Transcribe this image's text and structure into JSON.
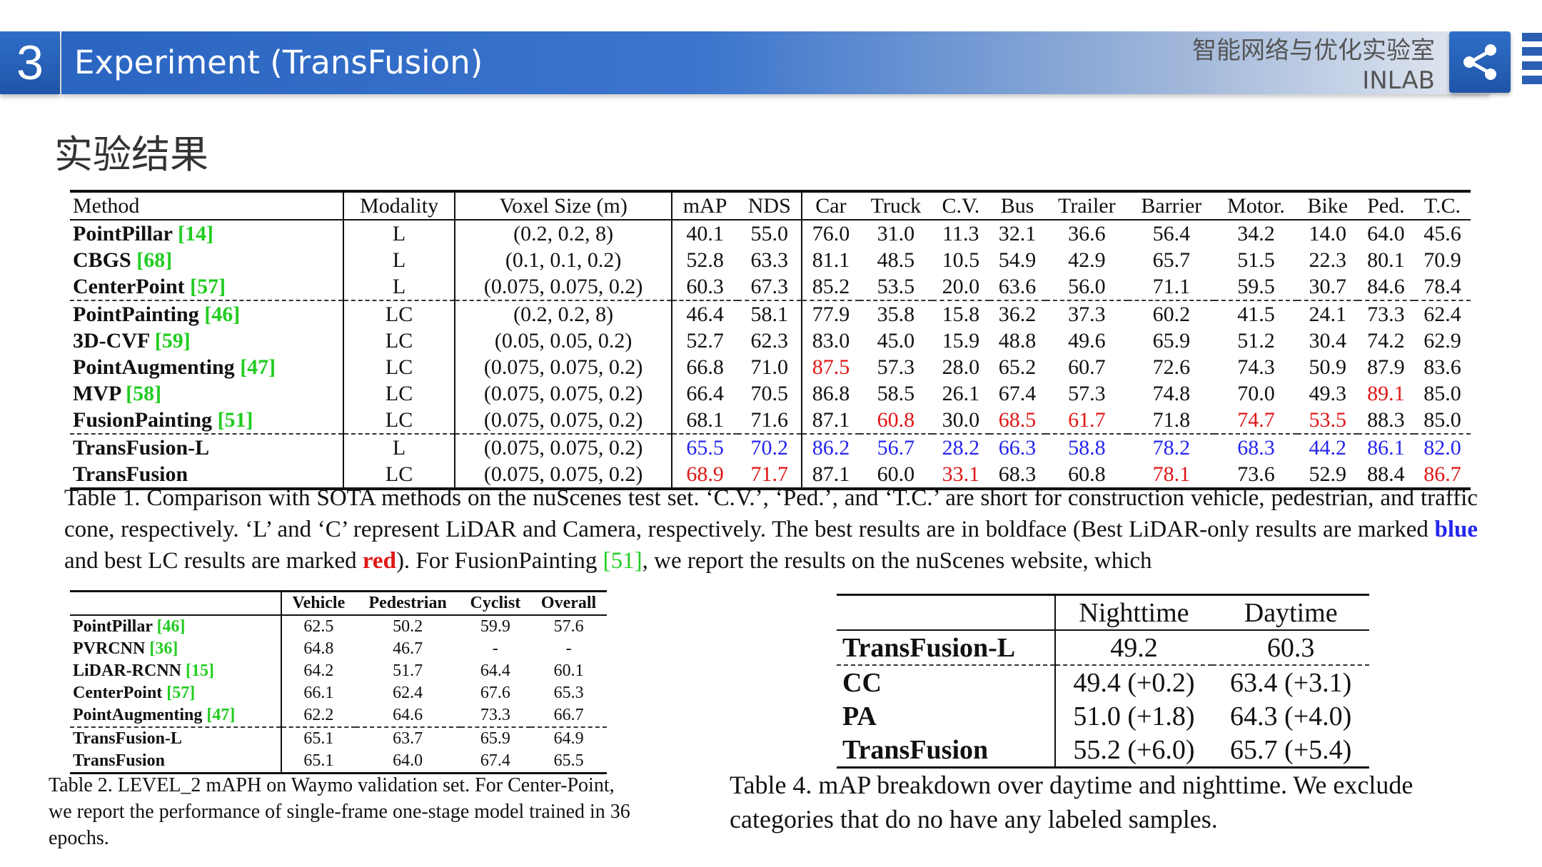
{
  "header": {
    "section_number": "3",
    "title": "Experiment (TransFusion)",
    "lab_name_cn": "智能网络与优化实验室",
    "lab_name_en": "INLAB"
  },
  "subtitle": "实验结果",
  "table1": {
    "headers": [
      "Method",
      "Modality",
      "Voxel Size (m)",
      "mAP",
      "NDS",
      "Car",
      "Truck",
      "C.V.",
      "Bus",
      "Trailer",
      "Barrier",
      "Motor.",
      "Bike",
      "Ped.",
      "T.C."
    ],
    "rows": [
      {
        "method": "PointPillar",
        "ref": "[14]",
        "modality": "L",
        "voxel": "(0.2, 0.2, 8)",
        "values": [
          "40.1",
          "55.0",
          "76.0",
          "31.0",
          "11.3",
          "32.1",
          "36.6",
          "56.4",
          "34.2",
          "14.0",
          "64.0",
          "45.6"
        ]
      },
      {
        "method": "CBGS",
        "ref": "[68]",
        "modality": "L",
        "voxel": "(0.1, 0.1, 0.2)",
        "values": [
          "52.8",
          "63.3",
          "81.1",
          "48.5",
          "10.5",
          "54.9",
          "42.9",
          "65.7",
          "51.5",
          "22.3",
          "80.1",
          "70.9"
        ]
      },
      {
        "method": "CenterPoint",
        "ref": "[57]",
        "modality": "L",
        "voxel": "(0.075, 0.075, 0.2)",
        "values": [
          "60.3",
          "67.3",
          "85.2",
          "53.5",
          "20.0",
          "63.6",
          "56.0",
          "71.1",
          "59.5",
          "30.7",
          "84.6",
          "78.4"
        ]
      },
      {
        "method": "PointPainting",
        "ref": "[46]",
        "modality": "LC",
        "voxel": "(0.2, 0.2, 8)",
        "values": [
          "46.4",
          "58.1",
          "77.9",
          "35.8",
          "15.8",
          "36.2",
          "37.3",
          "60.2",
          "41.5",
          "24.1",
          "73.3",
          "62.4"
        ]
      },
      {
        "method": "3D-CVF",
        "ref": "[59]",
        "modality": "LC",
        "voxel": "(0.05, 0.05, 0.2)",
        "values": [
          "52.7",
          "62.3",
          "83.0",
          "45.0",
          "15.9",
          "48.8",
          "49.6",
          "65.9",
          "51.2",
          "30.4",
          "74.2",
          "62.9"
        ]
      },
      {
        "method": "PointAugmenting",
        "ref": "[47]",
        "modality": "LC",
        "voxel": "(0.075, 0.075, 0.2)",
        "values": [
          "66.8",
          "71.0",
          "87.5",
          "57.3",
          "28.0",
          "65.2",
          "60.7",
          "72.6",
          "74.3",
          "50.9",
          "87.9",
          "83.6"
        ]
      },
      {
        "method": "MVP",
        "ref": "[58]",
        "modality": "LC",
        "voxel": "(0.075, 0.075, 0.2)",
        "values": [
          "66.4",
          "70.5",
          "86.8",
          "58.5",
          "26.1",
          "67.4",
          "57.3",
          "74.8",
          "70.0",
          "49.3",
          "89.1",
          "85.0"
        ]
      },
      {
        "method": "FusionPainting",
        "ref": "[51]",
        "modality": "LC",
        "voxel": "(0.075, 0.075, 0.2)",
        "values": [
          "68.1",
          "71.6",
          "87.1",
          "60.8",
          "30.0",
          "68.5",
          "61.7",
          "71.8",
          "74.7",
          "53.5",
          "88.3",
          "85.0"
        ]
      },
      {
        "method": "TransFusion-L",
        "ref": "",
        "modality": "L",
        "voxel": "(0.075, 0.075, 0.2)",
        "values": [
          "65.5",
          "70.2",
          "86.2",
          "56.7",
          "28.2",
          "66.3",
          "58.8",
          "78.2",
          "68.3",
          "44.2",
          "86.1",
          "82.0"
        ]
      },
      {
        "method": "TransFusion",
        "ref": "",
        "modality": "LC",
        "voxel": "(0.075, 0.075, 0.2)",
        "values": [
          "68.9",
          "71.7",
          "87.1",
          "60.0",
          "33.1",
          "68.3",
          "60.8",
          "78.1",
          "73.6",
          "52.9",
          "88.4",
          "86.7"
        ]
      }
    ],
    "caption_before_blue": "Table 1. Comparison with SOTA methods on the nuScenes test set. ‘C.V.’, ‘Ped.’, and ‘T.C.’ are short for construction vehicle, pedestrian, and traffic cone, respectively. ‘L’ and ‘C’ represent LiDAR and Camera, respectively. The best results are in boldface (Best LiDAR-only results are marked",
    "caption_blue": "blue",
    "caption_mid": "and best LC results are marked",
    "caption_red": "red",
    "caption_after": "). For FusionPainting",
    "caption_ref": "[51]",
    "caption_end": ", we report the results on the nuScenes website, which"
  },
  "table2": {
    "headers": [
      "",
      "Vehicle",
      "Pedestrian",
      "Cyclist",
      "Overall"
    ],
    "rows": [
      {
        "method": "PointPillar",
        "ref": "[46]",
        "values": [
          "62.5",
          "50.2",
          "59.9",
          "57.6"
        ]
      },
      {
        "method": "PVRCNN",
        "ref": "[36]",
        "values": [
          "64.8",
          "46.7",
          "-",
          "-"
        ]
      },
      {
        "method": "LiDAR-RCNN",
        "ref": "[15]",
        "values": [
          "64.2",
          "51.7",
          "64.4",
          "60.1"
        ]
      },
      {
        "method": "CenterPoint",
        "ref": "[57]",
        "values": [
          "66.1",
          "62.4",
          "67.6",
          "65.3"
        ]
      },
      {
        "method": "PointAugmenting",
        "ref": "[47]",
        "values": [
          "62.2",
          "64.6",
          "73.3",
          "66.7"
        ]
      },
      {
        "method": "TransFusion-L",
        "ref": "",
        "values": [
          "65.1",
          "63.7",
          "65.9",
          "64.9"
        ]
      },
      {
        "method": "TransFusion",
        "ref": "",
        "values": [
          "65.1",
          "64.0",
          "67.4",
          "65.5"
        ]
      }
    ],
    "caption": "Table 2. LEVEL_2 mAPH on Waymo validation set. For Center-Point, we report the performance of single-frame one-stage model trained in 36 epochs."
  },
  "table4": {
    "headers": [
      "",
      "Nighttime",
      "Daytime"
    ],
    "rows": [
      {
        "method": "TransFusion-L",
        "values": [
          "49.2",
          "60.3"
        ]
      },
      {
        "method": "CC",
        "values": [
          "49.4 (+0.2)",
          "63.4 (+3.1)"
        ]
      },
      {
        "method": "PA",
        "values": [
          "51.0 (+1.8)",
          "64.3 (+4.0)"
        ]
      },
      {
        "method": "TransFusion",
        "values": [
          "55.2 (+6.0)",
          "65.7 (+5.4)"
        ]
      }
    ],
    "caption": "Table 4. mAP breakdown over daytime and nighttime. We exclude categories that do no have any labeled samples."
  },
  "colors": {
    "accent": "#2a65c2",
    "best_lidar": "#2525ee",
    "best_lc": "#e01515",
    "citation": "#22cc22"
  },
  "icons": [
    "share-icon"
  ]
}
